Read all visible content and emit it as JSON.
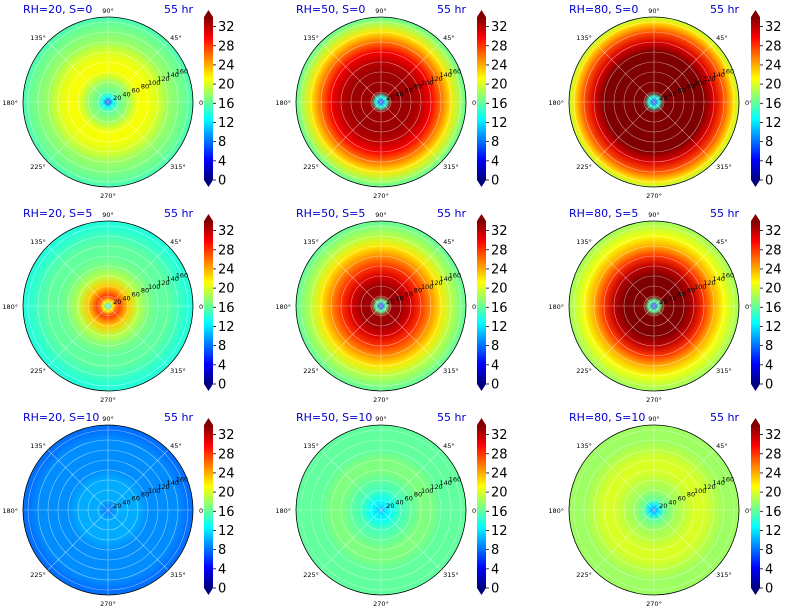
{
  "figure": {
    "angle_labels": [
      "0°",
      "45°",
      "90°",
      "135°",
      "180°",
      "225°",
      "270°",
      "315°"
    ],
    "radial_ticks": [
      "20",
      "40",
      "60",
      "80",
      "100",
      "120",
      "140",
      "160"
    ],
    "colorbar_ticks": [
      "0",
      "4",
      "8",
      "12",
      "16",
      "20",
      "24",
      "28",
      "32"
    ],
    "colormap": "jet",
    "colormap_stops": [
      "#00007f",
      "#0000ff",
      "#007fff",
      "#00ffff",
      "#7fff7f",
      "#ffff00",
      "#ff7f00",
      "#ff0000",
      "#7f0000"
    ]
  },
  "chart_data": [
    {
      "type": "heatmap",
      "projection": "polar",
      "title": "RH=20, S=0",
      "time_label": "55 hr",
      "rlim": [
        0,
        170
      ],
      "clim": [
        0,
        34
      ],
      "grid": true,
      "field": {
        "r": [
          0,
          10,
          20,
          40,
          60,
          80,
          100,
          120,
          140,
          160,
          170
        ],
        "values": [
          4,
          13,
          16,
          18,
          21,
          21,
          20,
          18,
          17,
          16,
          15
        ]
      }
    },
    {
      "type": "heatmap",
      "projection": "polar",
      "title": "RH=50, S=0",
      "time_label": "55 hr",
      "rlim": [
        0,
        170
      ],
      "clim": [
        0,
        34
      ],
      "grid": true,
      "field": {
        "r": [
          0,
          10,
          20,
          40,
          60,
          80,
          100,
          120,
          140,
          160,
          170
        ],
        "values": [
          4,
          14,
          33,
          33,
          33,
          32,
          30,
          26,
          22,
          18,
          16
        ]
      }
    },
    {
      "type": "heatmap",
      "projection": "polar",
      "title": "RH=80, S=0",
      "time_label": "55 hr",
      "rlim": [
        0,
        170
      ],
      "clim": [
        0,
        34
      ],
      "grid": true,
      "field": {
        "r": [
          0,
          10,
          20,
          40,
          60,
          80,
          100,
          120,
          140,
          160,
          170
        ],
        "values": [
          4,
          14,
          34,
          34,
          34,
          34,
          34,
          31,
          27,
          22,
          19
        ]
      }
    },
    {
      "type": "heatmap",
      "projection": "polar",
      "title": "RH=20, S=5",
      "time_label": "55 hr",
      "rlim": [
        0,
        170
      ],
      "clim": [
        0,
        34
      ],
      "grid": true,
      "field": {
        "r": [
          0,
          10,
          20,
          40,
          60,
          80,
          100,
          120,
          140,
          160,
          170
        ],
        "values": [
          12,
          22,
          28,
          23,
          19,
          17,
          16,
          16,
          15,
          14,
          14
        ]
      }
    },
    {
      "type": "heatmap",
      "projection": "polar",
      "title": "RH=50, S=5",
      "time_label": "55 hr",
      "rlim": [
        0,
        170
      ],
      "clim": [
        0,
        34
      ],
      "grid": true,
      "field": {
        "r": [
          0,
          10,
          20,
          40,
          60,
          80,
          100,
          120,
          140,
          160,
          170
        ],
        "values": [
          4,
          16,
          33,
          33,
          31,
          28,
          25,
          22,
          19,
          17,
          16
        ]
      }
    },
    {
      "type": "heatmap",
      "projection": "polar",
      "title": "RH=80, S=5",
      "time_label": "55 hr",
      "rlim": [
        0,
        170
      ],
      "clim": [
        0,
        34
      ],
      "grid": true,
      "field": {
        "r": [
          0,
          10,
          20,
          40,
          60,
          80,
          100,
          120,
          140,
          160,
          170
        ],
        "values": [
          4,
          16,
          34,
          34,
          34,
          32,
          28,
          24,
          21,
          19,
          18
        ]
      }
    },
    {
      "type": "heatmap",
      "projection": "polar",
      "title": "RH=20, S=10",
      "time_label": "55 hr",
      "rlim": [
        0,
        170
      ],
      "clim": [
        0,
        34
      ],
      "grid": true,
      "field": {
        "r": [
          0,
          10,
          20,
          40,
          60,
          80,
          100,
          120,
          140,
          160,
          170
        ],
        "values": [
          8,
          9,
          10,
          10,
          10,
          9,
          9,
          9,
          9,
          8,
          8
        ]
      }
    },
    {
      "type": "heatmap",
      "projection": "polar",
      "title": "RH=50, S=10",
      "time_label": "55 hr",
      "rlim": [
        0,
        170
      ],
      "clim": [
        0,
        34
      ],
      "grid": true,
      "field": {
        "r": [
          0,
          10,
          20,
          40,
          60,
          80,
          100,
          120,
          140,
          160,
          170
        ],
        "values": [
          10,
          12,
          13,
          15,
          16,
          17,
          17,
          16,
          16,
          16,
          16
        ]
      }
    },
    {
      "type": "heatmap",
      "projection": "polar",
      "title": "RH=80, S=10",
      "time_label": "55 hr",
      "rlim": [
        0,
        170
      ],
      "clim": [
        0,
        34
      ],
      "grid": true,
      "field": {
        "r": [
          0,
          10,
          20,
          40,
          60,
          80,
          100,
          120,
          140,
          160,
          170
        ],
        "values": [
          8,
          12,
          16,
          18,
          19,
          20,
          20,
          19,
          18,
          18,
          18
        ]
      }
    }
  ]
}
